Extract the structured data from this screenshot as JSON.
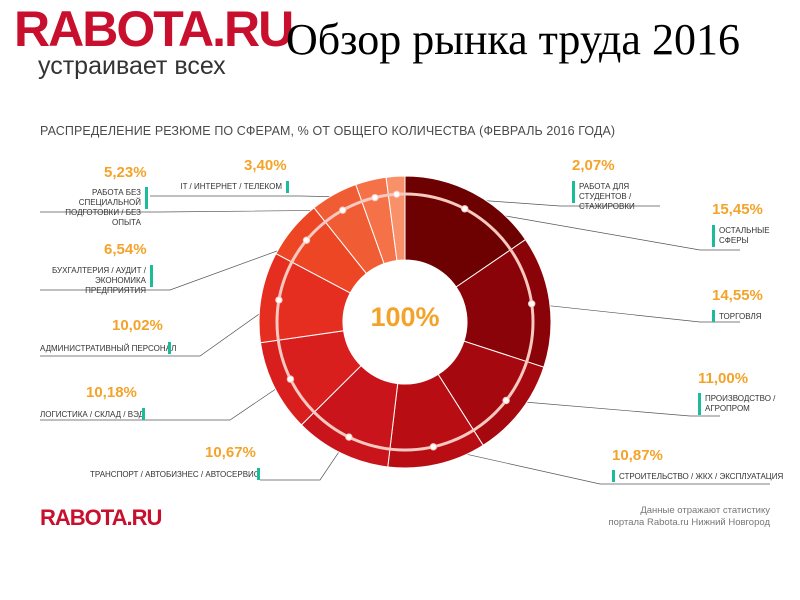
{
  "header": {
    "logo_main": "RABOTA.RU",
    "logo_tagline": "устраивает всех",
    "title": "Обзор рынка труда 2016"
  },
  "chart_data": {
    "type": "pie",
    "title": "РАСПРЕДЕЛЕНИЕ РЕЗЮМЕ ПО СФЕРАМ, % ОТ ОБЩЕГО КОЛИЧЕСТВА (ФЕВРАЛЬ 2016 ГОДА)",
    "center_label": "100%",
    "unit": "%",
    "slices": [
      {
        "label": "Остальные сферы",
        "value": 15.45,
        "display": "15,45%",
        "color": "#6d0000"
      },
      {
        "label": "Торговля",
        "value": 14.55,
        "display": "14,55%",
        "color": "#8a0308"
      },
      {
        "label": "Производство / Агропром",
        "value": 11.0,
        "display": "11,00%",
        "color": "#a5080f"
      },
      {
        "label": "Строительство / ЖКХ / Эксплуатация",
        "value": 10.87,
        "display": "10,87%",
        "color": "#b90d14"
      },
      {
        "label": "Транспорт / Автобизнес / Автосервис",
        "value": 10.67,
        "display": "10,67%",
        "color": "#c8141a"
      },
      {
        "label": "Логистика / Склад / ВЭД",
        "value": 10.18,
        "display": "10,18%",
        "color": "#d91e1e"
      },
      {
        "label": "Административный персонал",
        "value": 10.02,
        "display": "10,02%",
        "color": "#e52d20"
      },
      {
        "label": "Бухгалтерия / Аудит / Экономика предприятия",
        "value": 6.54,
        "display": "6,54%",
        "color": "#ec4625"
      },
      {
        "label": "Работа без специальной подготовки / без опыта",
        "value": 5.23,
        "display": "5,23%",
        "color": "#f05d34"
      },
      {
        "label": "IT / Интернет / Телеком",
        "value": 3.4,
        "display": "3,40%",
        "color": "#f57248"
      },
      {
        "label": "Работа для студентов / стажировки",
        "value": 2.07,
        "display": "2,07%",
        "color": "#f8906a"
      }
    ]
  },
  "labels": {
    "other_pct": "15,45%",
    "other_cat": "Остальные сферы",
    "trade_pct": "14,55%",
    "trade_cat": "Торговля",
    "prod_pct": "11,00%",
    "prod_cat": "Производство / Агропром",
    "build_pct": "10,87%",
    "build_cat": "Строительство / ЖКХ / Эксплуатация",
    "transport_pct": "10,67%",
    "transport_cat": "Транспорт / Автобизнес / Автосервис",
    "logistics_pct": "10,18%",
    "logistics_cat": "Логистика / Склад / ВЭД",
    "admin_pct": "10,02%",
    "admin_cat": "Административный персонал",
    "account_pct": "6,54%",
    "account_cat": "Бухгалтерия / Аудит / Экономика предприятия",
    "noexp_pct": "5,23%",
    "noexp_cat": "Работа без специальной подготовки / без опыта",
    "it_pct": "3,40%",
    "it_cat": "IT / Интернет / Телеком",
    "students_pct": "2,07%",
    "students_cat": "Работа для студентов / стажировки"
  },
  "footer": {
    "logo": "RABOTA.RU",
    "note_line1": "Данные отражают статистику",
    "note_line2": "портала Rabota.ru Нижний Новгород"
  },
  "colors": {
    "brand": "#c8102e",
    "accent": "#f4a32a",
    "marker": "#1abc9c"
  }
}
